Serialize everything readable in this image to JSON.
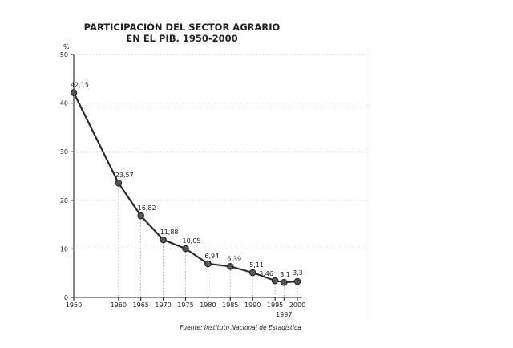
{
  "chart_data": {
    "type": "line",
    "title_line1": "PARTICIPACIÓN DEL SECTOR AGRARIO",
    "title_line2": "EN EL PIB. 1950-2000",
    "ylabel": "%",
    "xlabel": "",
    "ylim": [
      0,
      50
    ],
    "yticks": [
      0,
      10,
      20,
      30,
      40,
      50
    ],
    "grid": true,
    "x": [
      1950,
      1960,
      1965,
      1970,
      1975,
      1980,
      1985,
      1990,
      1995,
      1997,
      2000
    ],
    "xtick_labels": [
      "1950",
      "1960",
      "1965",
      "1970",
      "1975",
      "1980",
      "1985",
      "1990",
      "1995",
      "1997",
      "2000"
    ],
    "series": [
      {
        "values": [
          42.15,
          23.57,
          16.82,
          11.88,
          10.05,
          6.94,
          6.39,
          5.11,
          3.46,
          3.1,
          3.3
        ],
        "labels": [
          "42,15",
          "23,57",
          "16,82",
          "11,88",
          "10,05",
          "6,94",
          "6,39",
          "5,11",
          "3,46",
          "3,1",
          "3,3"
        ]
      }
    ],
    "source": "Fuente: Instituto Nacional de Estadística"
  }
}
